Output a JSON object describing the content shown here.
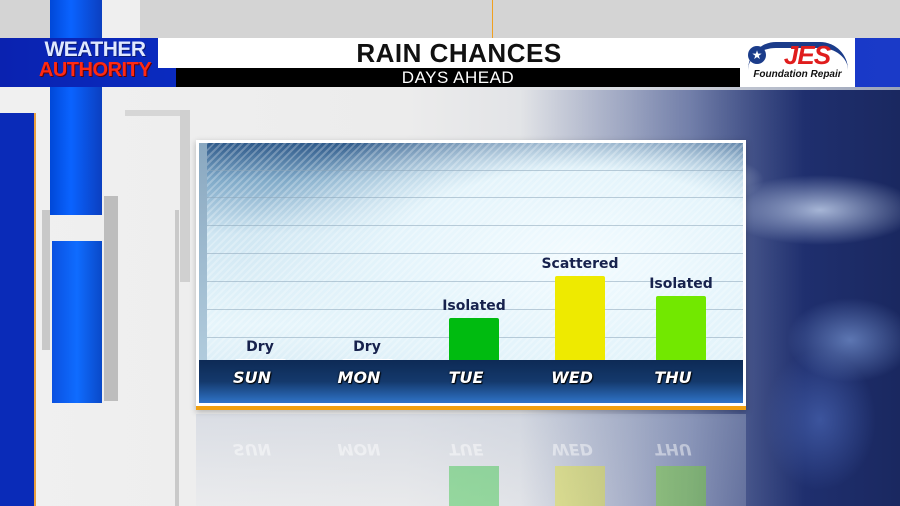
{
  "header": {
    "brand_line1": "WEATHER",
    "brand_line2": "AUTHORITY",
    "title": "RAIN CHANCES",
    "subtitle": "DAYS AHEAD"
  },
  "sponsor": {
    "name": "JES",
    "tagline": "Foundation Repair"
  },
  "colors": {
    "header_blue": "#0a2bc0",
    "brand_red": "#ff2a14",
    "accent_orange": "#f0a010",
    "axis_navy": "#14396c",
    "label_navy": "#17224d"
  },
  "chart_data": {
    "type": "bar",
    "title": "RAIN CHANCES",
    "subtitle": "DAYS AHEAD",
    "categories": [
      "SUN",
      "MON",
      "TUE",
      "WED",
      "THU"
    ],
    "labels": [
      "Dry",
      "Dry",
      "Isolated",
      "Scattered",
      "Isolated"
    ],
    "values": [
      0,
      0,
      45,
      87,
      67
    ],
    "value_units": "relative bar height (0-100, unlabeled axis)",
    "bar_colors": [
      "#ffffff",
      "#ffffff",
      "#00bb10",
      "#eeea00",
      "#72e800"
    ],
    "xlabel": "",
    "ylabel": "",
    "ylim": [
      0,
      100
    ],
    "grid": true,
    "legend": null
  }
}
